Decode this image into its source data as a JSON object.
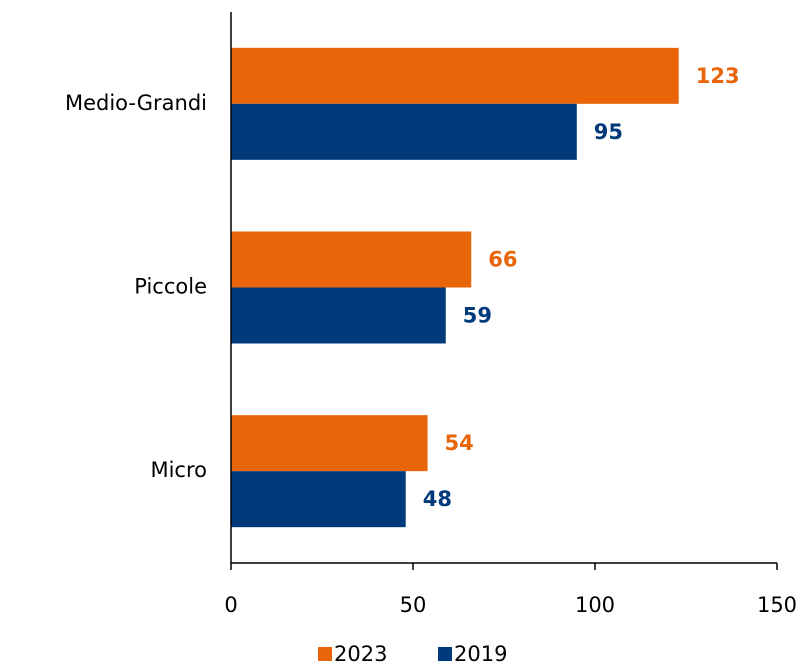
{
  "chart_data": {
    "type": "hbar",
    "categories": [
      "Medio-Grandi",
      "Piccole",
      "Micro"
    ],
    "series": [
      {
        "name": "2023",
        "color": "#e8650a",
        "values": [
          123,
          66,
          54
        ]
      },
      {
        "name": "2019",
        "color": "#003a7a",
        "values": [
          95,
          59,
          48
        ]
      }
    ],
    "xlim": [
      0,
      150
    ],
    "xticks": [
      0,
      50,
      100,
      150
    ],
    "grid": false,
    "legend": "bottom"
  }
}
